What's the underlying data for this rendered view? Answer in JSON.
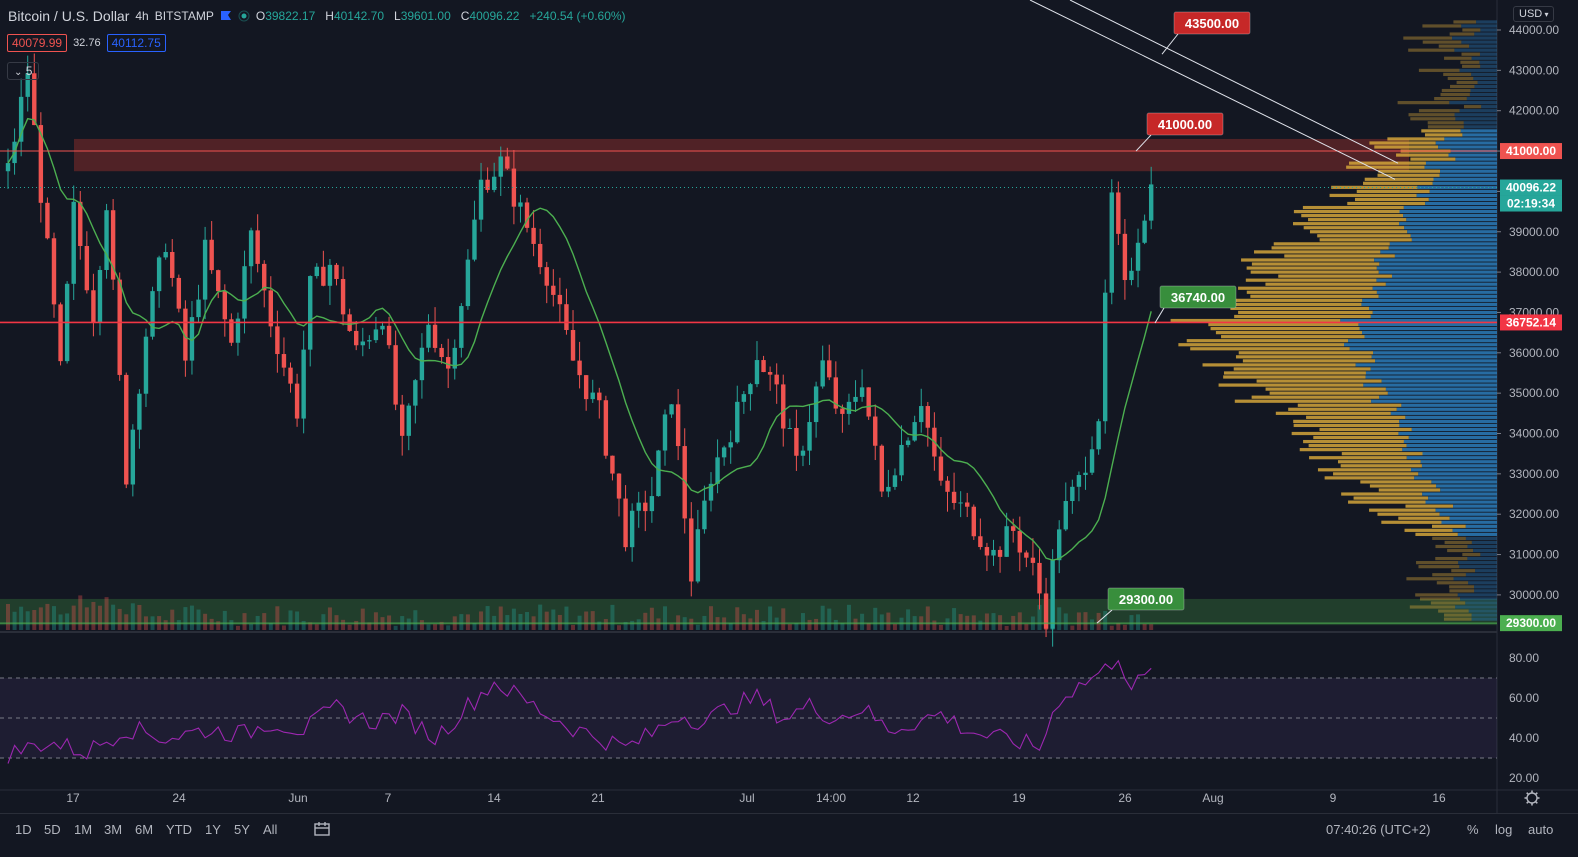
{
  "header": {
    "symbol": "Bitcoin / U.S. Dollar",
    "interval": "4h",
    "exchange": "BITSTAMP",
    "o_label": "O",
    "o_value": "39822.17",
    "h_label": "H",
    "h_value": "40142.70",
    "l_label": "L",
    "l_value": "39601.00",
    "c_label": "C",
    "c_value": "40096.22",
    "change": "+240.54 (+0.60%)"
  },
  "trade": {
    "sell_price": "40079.99",
    "spread": "32.76",
    "buy_price": "40112.75"
  },
  "indicator_toggle": "5",
  "currency": "USD",
  "price_axis": {
    "ticks": [
      "44000.00",
      "43000.00",
      "42000.00",
      "41000.00",
      "40000.00",
      "39000.00",
      "38000.00",
      "37000.00",
      "36000.00",
      "35000.00",
      "34000.00",
      "33000.00",
      "32000.00",
      "31000.00",
      "30000.00"
    ],
    "badges": [
      {
        "text": "41000.00",
        "color": "#ef5350"
      },
      {
        "text": "40096.22",
        "color": "#26a69a"
      },
      {
        "text": "02:19:34",
        "color": "#26a69a"
      },
      {
        "text": "36752.14",
        "color": "#f23645"
      },
      {
        "text": "29300.00",
        "color": "#4caf50"
      }
    ]
  },
  "rsi_axis": {
    "ticks": [
      "80.00",
      "60.00",
      "40.00",
      "20.00"
    ]
  },
  "time_axis": {
    "ticks": [
      "17",
      "24",
      "Jun",
      "7",
      "14",
      "21",
      "Jul",
      "14:00",
      "12",
      "19",
      "26",
      "Aug",
      "9",
      "16"
    ]
  },
  "annotations": [
    {
      "text": "43500.00",
      "color": "#c62828"
    },
    {
      "text": "41000.00",
      "color": "#c62828"
    },
    {
      "text": "36740.00",
      "color": "#388e3c"
    },
    {
      "text": "29300.00",
      "color": "#388e3c"
    }
  ],
  "bottom": {
    "ranges": [
      "1D",
      "5D",
      "1M",
      "3M",
      "6M",
      "YTD",
      "1Y",
      "5Y",
      "All"
    ],
    "time": "07:40:26 (UTC+2)",
    "pct": "%",
    "log": "log",
    "auto": "auto"
  },
  "colors": {
    "up": "#26a69a",
    "down": "#ef5350",
    "ma": "#4caf50",
    "rsi": "#9c27b0",
    "resistance_zone": "#7a2a2a",
    "support_zone": "#2e5e34",
    "vp_up": "#2b7bb9",
    "vp_down": "#d4a43a"
  },
  "chart_data": {
    "type": "candlestick",
    "ylim": [
      29300,
      44500
    ],
    "rsi_ylim": [
      20,
      85
    ],
    "key_levels": [
      43500,
      41000,
      36740,
      36752.14,
      29300
    ],
    "price_path": [
      [
        0,
        40500
      ],
      [
        3,
        43000
      ],
      [
        8,
        35500
      ],
      [
        10,
        39500
      ],
      [
        13,
        37000
      ],
      [
        15,
        39800
      ],
      [
        18,
        33000
      ],
      [
        21,
        36500
      ],
      [
        24,
        38800
      ],
      [
        27,
        35800
      ],
      [
        30,
        38500
      ],
      [
        34,
        36200
      ],
      [
        37,
        38900
      ],
      [
        40,
        36800
      ],
      [
        44,
        34600
      ],
      [
        46,
        37600
      ],
      [
        49,
        38200
      ],
      [
        53,
        36000
      ],
      [
        57,
        37000
      ],
      [
        60,
        33600
      ],
      [
        64,
        36800
      ],
      [
        67,
        35600
      ],
      [
        70,
        38200
      ],
      [
        72,
        40200
      ],
      [
        75,
        40700
      ],
      [
        78,
        39500
      ],
      [
        82,
        38000
      ],
      [
        86,
        35800
      ],
      [
        90,
        34500
      ],
      [
        94,
        31500
      ],
      [
        98,
        32500
      ],
      [
        101,
        35000
      ],
      [
        104,
        30500
      ],
      [
        107,
        33000
      ],
      [
        111,
        34500
      ],
      [
        114,
        36000
      ],
      [
        117,
        35000
      ],
      [
        120,
        33200
      ],
      [
        124,
        35700
      ],
      [
        127,
        34200
      ],
      [
        130,
        35400
      ],
      [
        133,
        32500
      ],
      [
        136,
        33700
      ],
      [
        139,
        34900
      ],
      [
        142,
        32600
      ],
      [
        146,
        32000
      ],
      [
        150,
        31000
      ],
      [
        153,
        31600
      ],
      [
        156,
        30600
      ],
      [
        158,
        29500
      ],
      [
        160,
        31800
      ],
      [
        163,
        32800
      ],
      [
        166,
        34500
      ],
      [
        168,
        39800
      ],
      [
        170,
        37500
      ],
      [
        172,
        39000
      ],
      [
        174,
        40096
      ]
    ],
    "rsi_path": [
      [
        0,
        32
      ],
      [
        6,
        38
      ],
      [
        12,
        33
      ],
      [
        18,
        45
      ],
      [
        24,
        40
      ],
      [
        30,
        44
      ],
      [
        36,
        42
      ],
      [
        40,
        48
      ],
      [
        45,
        44
      ],
      [
        50,
        55
      ],
      [
        55,
        48
      ],
      [
        60,
        52
      ],
      [
        65,
        40
      ],
      [
        70,
        56
      ],
      [
        74,
        68
      ],
      [
        78,
        60
      ],
      [
        82,
        52
      ],
      [
        86,
        45
      ],
      [
        90,
        40
      ],
      [
        94,
        35
      ],
      [
        98,
        42
      ],
      [
        102,
        52
      ],
      [
        106,
        48
      ],
      [
        110,
        56
      ],
      [
        114,
        60
      ],
      [
        118,
        50
      ],
      [
        122,
        56
      ],
      [
        126,
        50
      ],
      [
        130,
        55
      ],
      [
        134,
        44
      ],
      [
        138,
        48
      ],
      [
        142,
        52
      ],
      [
        146,
        44
      ],
      [
        150,
        40
      ],
      [
        154,
        38
      ],
      [
        157,
        35
      ],
      [
        160,
        60
      ],
      [
        164,
        68
      ],
      [
        167,
        74
      ],
      [
        169,
        82
      ],
      [
        171,
        65
      ],
      [
        174,
        72
      ]
    ]
  }
}
